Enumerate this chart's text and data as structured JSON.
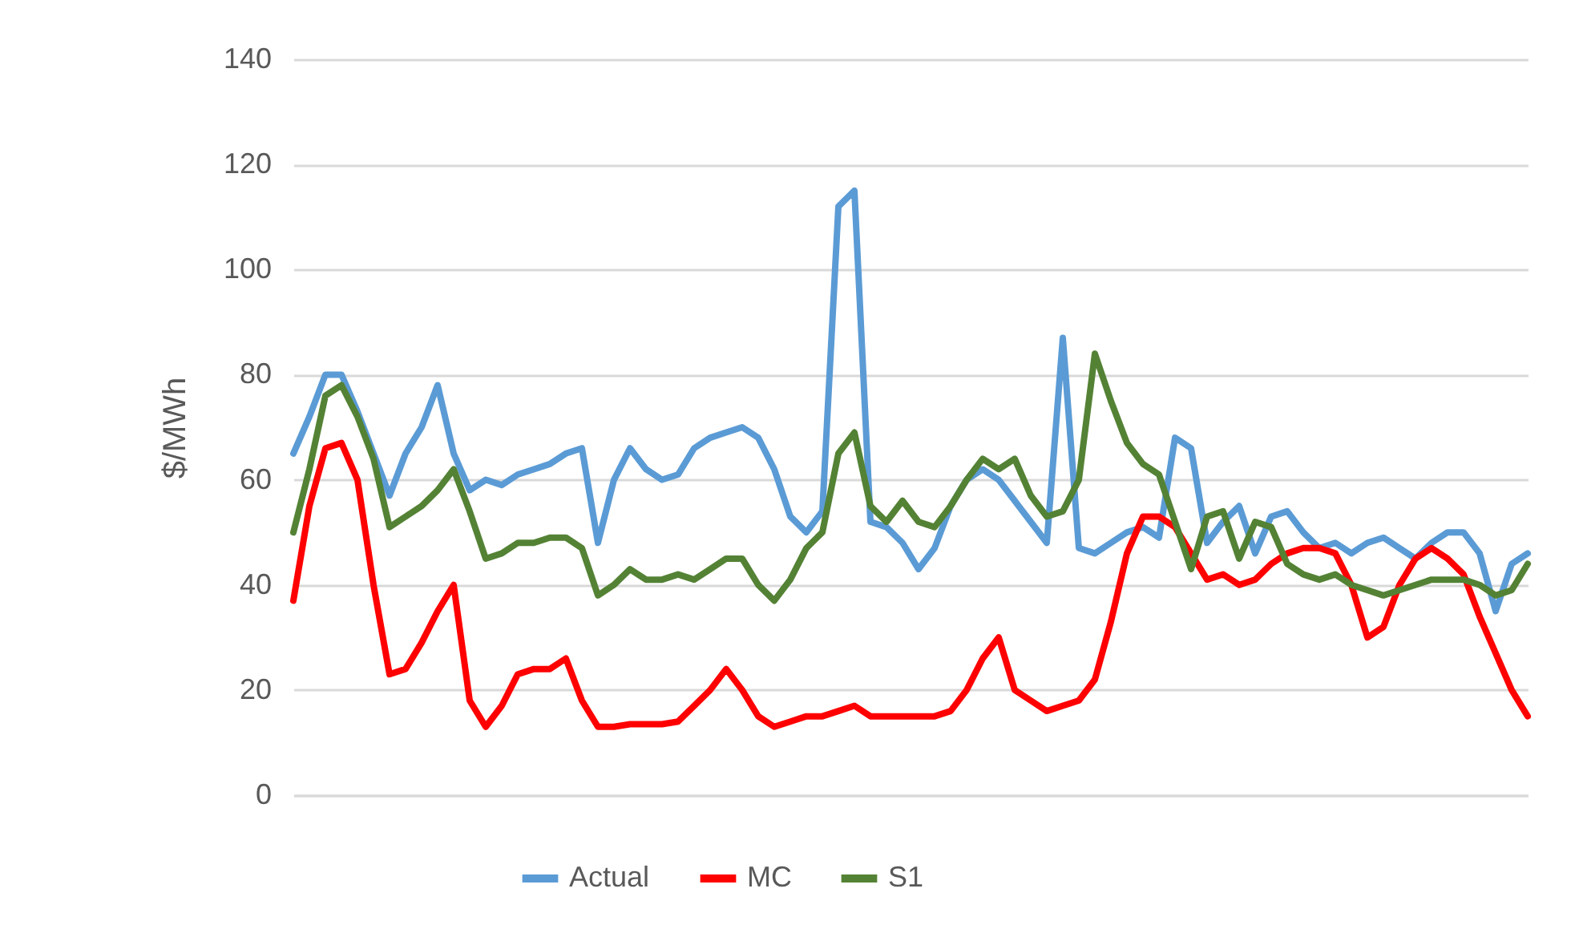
{
  "chart_data": {
    "type": "line",
    "ylabel": "$/MWh",
    "categories": [
      null,
      null,
      null,
      null,
      null,
      null,
      null,
      null,
      null,
      null,
      null,
      null,
      null,
      null,
      null,
      null,
      null,
      null,
      null,
      null,
      null,
      null,
      null,
      null,
      null,
      null,
      null,
      null,
      null,
      null,
      null,
      null,
      null,
      null,
      null,
      null,
      null,
      null,
      null,
      null,
      null,
      null,
      null,
      null,
      null,
      null,
      null,
      null,
      null,
      null,
      null,
      null,
      null,
      null,
      null,
      null,
      null,
      null,
      null,
      null,
      null,
      null,
      null,
      null,
      null,
      null,
      null,
      null,
      null,
      null,
      null,
      null,
      null,
      null,
      null,
      null,
      null,
      null
    ],
    "series": [
      {
        "name": "Actual",
        "color": "#5b9bd5",
        "values": [
          65,
          72,
          80,
          80,
          73,
          65,
          57,
          65,
          70,
          78,
          65,
          58,
          60,
          59,
          61,
          62,
          63,
          65,
          66,
          48,
          60,
          66,
          62,
          60,
          61,
          66,
          68,
          69,
          70,
          68,
          62,
          53,
          50,
          54,
          112,
          115,
          52,
          51,
          48,
          43,
          47,
          55,
          60,
          62,
          60,
          56,
          52,
          48,
          87,
          47,
          46,
          48,
          50,
          51,
          49,
          68,
          66,
          48,
          52,
          55,
          46,
          53,
          54,
          50,
          47,
          48,
          46,
          48,
          49,
          47,
          45,
          48,
          50,
          50,
          46,
          35,
          44,
          46
        ]
      },
      {
        "name": "MC",
        "color": "#ff0000",
        "values": [
          37,
          55,
          66,
          67,
          60,
          40,
          23,
          24,
          29,
          35,
          40,
          18,
          13,
          17,
          23,
          24,
          24,
          26,
          18,
          13,
          13,
          13.5,
          13.5,
          13.5,
          14,
          17,
          20,
          24,
          20,
          15,
          13,
          14,
          15,
          15,
          16,
          17,
          15,
          15,
          15,
          15,
          15,
          16,
          20,
          26,
          30,
          20,
          18,
          16,
          17,
          18,
          22,
          33,
          46,
          53,
          53,
          51,
          46,
          41,
          42,
          40,
          41,
          44,
          46,
          47,
          47,
          46,
          40,
          30,
          32,
          40,
          45,
          47,
          45,
          42,
          34,
          27,
          20,
          15
        ]
      },
      {
        "name": "S1",
        "color": "#548235",
        "values": [
          50,
          62,
          76,
          78,
          72,
          64,
          51,
          53,
          55,
          58,
          62,
          54,
          45,
          46,
          48,
          48,
          49,
          49,
          47,
          38,
          40,
          43,
          41,
          41,
          42,
          41,
          43,
          45,
          45,
          40,
          37,
          41,
          47,
          50,
          65,
          69,
          55,
          52,
          56,
          52,
          51,
          55,
          60,
          64,
          62,
          64,
          57,
          53,
          54,
          60,
          84,
          75,
          67,
          63,
          61,
          52,
          43,
          53,
          54,
          45,
          52,
          51,
          44,
          42,
          41,
          42,
          40,
          39,
          38,
          39,
          40,
          41,
          41,
          41,
          40,
          38,
          39,
          44
        ]
      }
    ],
    "ylim": [
      0,
      140
    ],
    "yticks": [
      0,
      20,
      40,
      60,
      80,
      100,
      120,
      140
    ],
    "grid": "y",
    "legend": "bottom",
    "tick_labels": "y",
    "marker": "none",
    "line_style": "solid"
  }
}
